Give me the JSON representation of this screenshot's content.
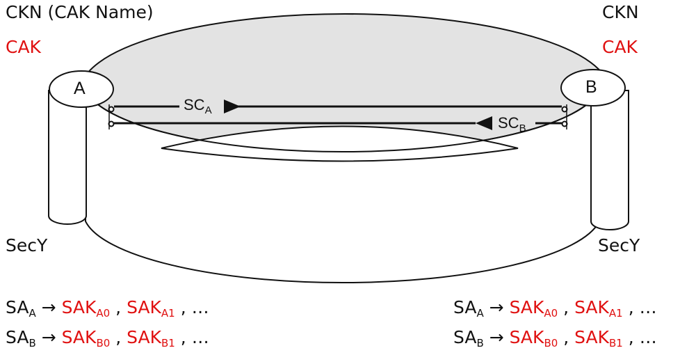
{
  "diagram": {
    "left_peer": {
      "label": "A",
      "ckn_label": "CKN (CAK Name)",
      "cak_label": "CAK",
      "secy_label": "SecY"
    },
    "right_peer": {
      "label": "B",
      "ckn_label": "CKN",
      "cak_label": "CAK",
      "secy_label": "SecY"
    },
    "channels": {
      "sc_a": {
        "base": "SC",
        "sub": "A"
      },
      "sc_b": {
        "base": "SC",
        "sub": "B"
      }
    },
    "sa_mapping": {
      "arrow": "→",
      "separator": ",",
      "ellipsis": "…",
      "rows": [
        {
          "sa_base": "SA",
          "sa_sub": "A",
          "key1_base": "SAK",
          "key1_sub": "A0",
          "key2_base": "SAK",
          "key2_sub": "A1"
        },
        {
          "sa_base": "SA",
          "sa_sub": "B",
          "key1_base": "SAK",
          "key1_sub": "B0",
          "key2_base": "SAK",
          "key2_sub": "B1"
        }
      ]
    },
    "colors": {
      "key_color": "#e01010",
      "text_color": "#111111",
      "ring_fill": "#e3e3e3"
    }
  }
}
